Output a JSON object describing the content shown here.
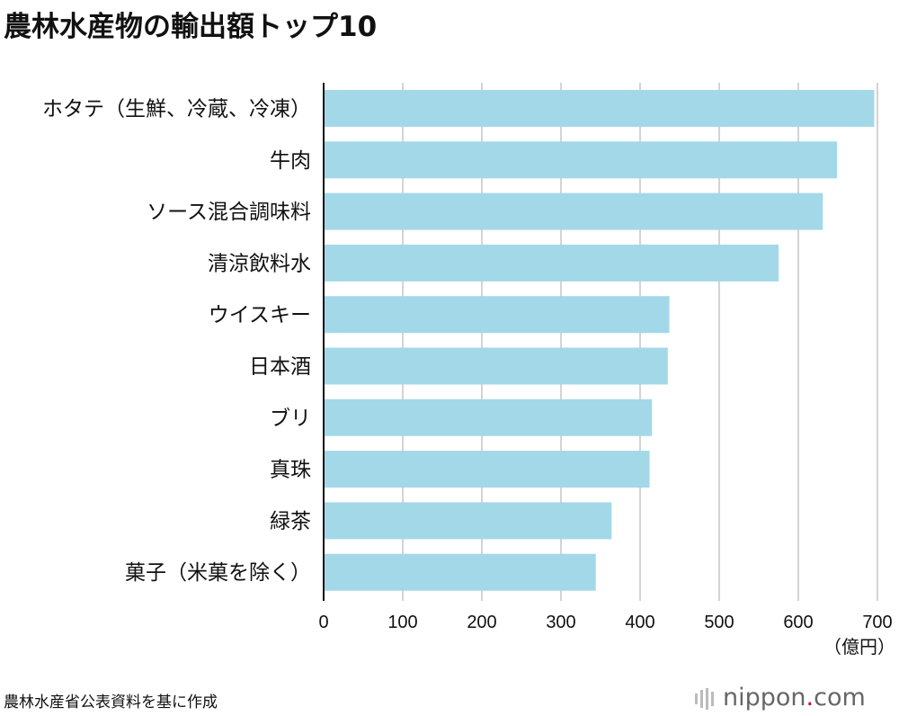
{
  "chart_data": {
    "type": "bar",
    "orientation": "horizontal",
    "title": "農林水産物の輸出額トップ10",
    "categories": [
      "ホタテ（生鮮、冷蔵、冷凍）",
      "牛肉",
      "ソース混合調味料",
      "清涼飲料水",
      "ウイスキー",
      "日本酒",
      "ブリ",
      "真珠",
      "緑茶",
      "菓子（米菓を除く）"
    ],
    "values": [
      696,
      649,
      631,
      575,
      437,
      435,
      415,
      412,
      364,
      344
    ],
    "xlabel": "（億円）",
    "xlim": [
      0,
      700
    ],
    "xticks": [
      "0",
      "100",
      "200",
      "300",
      "400",
      "500",
      "600",
      "700"
    ],
    "grid": true,
    "bar_color": "#a3d8e9",
    "source": "農林水産省公表資料を基に作成"
  },
  "logo": {
    "text_main": "nippon",
    "text_dot": ".",
    "text_tail": "com",
    "accent": "#d0021b"
  }
}
